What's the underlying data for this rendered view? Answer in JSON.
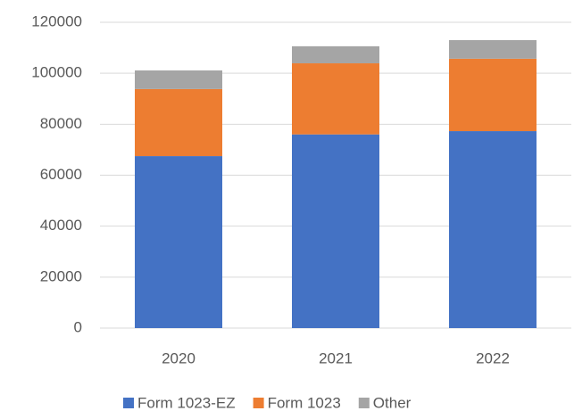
{
  "chart_data": {
    "type": "stacked_bar",
    "categories": [
      "2020",
      "2021",
      "2022"
    ],
    "series": [
      {
        "name": "Form 1023-EZ",
        "color": "#4472c4",
        "values": [
          67500,
          76000,
          77300
        ]
      },
      {
        "name": "Form 1023",
        "color": "#ed7d31",
        "values": [
          26300,
          27900,
          28400
        ]
      },
      {
        "name": "Other",
        "color": "#a5a5a5",
        "values": [
          7300,
          6700,
          7300
        ]
      }
    ],
    "ylim": [
      0,
      120000
    ],
    "yticks": [
      0,
      20000,
      40000,
      60000,
      80000,
      100000,
      120000
    ],
    "grid": true,
    "legend": "bottom"
  }
}
